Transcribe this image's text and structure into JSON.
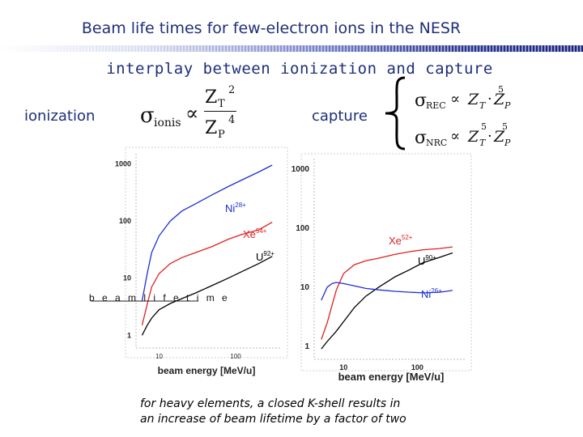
{
  "slide": {
    "title": "Beam life times for few-electron ions in the NESR",
    "subtitle": "interplay between ionization and capture",
    "ionization_label": "ionization",
    "capture_label": "capture",
    "caption_line1": "for heavy elements, a closed K-shell results in",
    "caption_line2": "an increase of beam lifetime by a factor of  two"
  },
  "formulas": {
    "ionis": {
      "sigma": "σ",
      "sub": "ionis",
      "prop": "∝",
      "num_base": "Z",
      "num_sub": "T",
      "num_exp": "2",
      "den_base": "Z",
      "den_sub": "P",
      "den_exp": "4"
    },
    "rec": {
      "sigma": "σ",
      "sub": "REC",
      "prop": "∝",
      "t": "Z",
      "t_sub": "T",
      "dot": "·",
      "p": "Z",
      "p_sub": "P",
      "p_exp": "5"
    },
    "nrc": {
      "sigma": "σ",
      "sub": "NRC",
      "prop": "∝",
      "t": "Z",
      "t_sub": "T",
      "t_exp": "5",
      "dot": "·",
      "p": "Z",
      "p_sub": "P",
      "p_exp": "5"
    }
  },
  "colors": {
    "blue": "#1f2fd0",
    "red": "#e02020",
    "black": "#000000",
    "text_blue": "#1f2f7a"
  },
  "chart_data": [
    {
      "type": "line",
      "x_scale": "log",
      "y_scale": "log",
      "xlim": [
        5,
        400
      ],
      "ylim": [
        0.6,
        1500
      ],
      "xticks": [
        10,
        100
      ],
      "yticks": [
        1,
        10,
        100,
        1000
      ],
      "xlabel": "beam energy [MeV/u]",
      "ylabel": "",
      "garbled_axis_text": "b e a m  l i f e t i m e",
      "series": [
        {
          "name": "Ni28+",
          "label_base": "Ni",
          "label_charge": "28+",
          "color": "#1f2fd0",
          "x": [
            6,
            7,
            8,
            10,
            14,
            20,
            30,
            50,
            80,
            120,
            200,
            300
          ],
          "y": [
            4,
            12,
            28,
            55,
            100,
            150,
            200,
            290,
            400,
            520,
            720,
            950
          ]
        },
        {
          "name": "Xe54+",
          "label_base": "Xe",
          "label_charge": "54+",
          "color": "#e02020",
          "x": [
            6,
            7,
            8,
            10,
            14,
            20,
            30,
            50,
            80,
            120,
            200,
            300
          ],
          "y": [
            1.5,
            3.5,
            7,
            12,
            18,
            23,
            28,
            36,
            48,
            58,
            70,
            95
          ]
        },
        {
          "name": "U92+",
          "label_base": "U",
          "label_charge": "92+",
          "color": "#000000",
          "x": [
            6,
            7,
            8,
            10,
            14,
            20,
            30,
            50,
            80,
            120,
            200,
            300
          ],
          "y": [
            1.0,
            1.5,
            2.0,
            2.8,
            3.6,
            4.4,
            5.5,
            7.5,
            10,
            13,
            18,
            24
          ]
        }
      ]
    },
    {
      "type": "line",
      "x_scale": "log",
      "y_scale": "log",
      "xlim": [
        4,
        450
      ],
      "ylim": [
        0.6,
        1500
      ],
      "xticks": [
        10,
        100
      ],
      "yticks": [
        1,
        10,
        100,
        1000
      ],
      "xlabel": "beam energy [MeV/u]",
      "ylabel": "",
      "series": [
        {
          "name": "Xe52+",
          "label_base": "Xe",
          "label_charge": "52+",
          "color": "#e02020",
          "x": [
            5,
            6,
            7,
            8,
            10,
            14,
            20,
            30,
            50,
            80,
            120,
            200,
            300
          ],
          "y": [
            1.3,
            2.5,
            5.0,
            9.0,
            17,
            24,
            28,
            31,
            36,
            40,
            43,
            45,
            48
          ]
        },
        {
          "name": "U90+",
          "label_base": "U",
          "label_charge": "90+",
          "color": "#000000",
          "x": [
            5,
            6,
            8,
            10,
            14,
            20,
            30,
            50,
            80,
            120,
            200,
            300
          ],
          "y": [
            0.9,
            1.2,
            1.8,
            2.6,
            4.5,
            7.0,
            10,
            15,
            20,
            26,
            32,
            38
          ]
        },
        {
          "name": "Ni26+",
          "label_base": "Ni",
          "label_charge": "26+",
          "color": "#1f2fd0",
          "x": [
            5,
            6,
            7,
            8,
            10,
            14,
            20,
            30,
            50,
            80,
            120,
            200,
            300
          ],
          "y": [
            6,
            10,
            11.5,
            12,
            11.5,
            10.5,
            9.5,
            9,
            8.5,
            8.2,
            8.0,
            8.2,
            8.8
          ]
        }
      ]
    }
  ]
}
